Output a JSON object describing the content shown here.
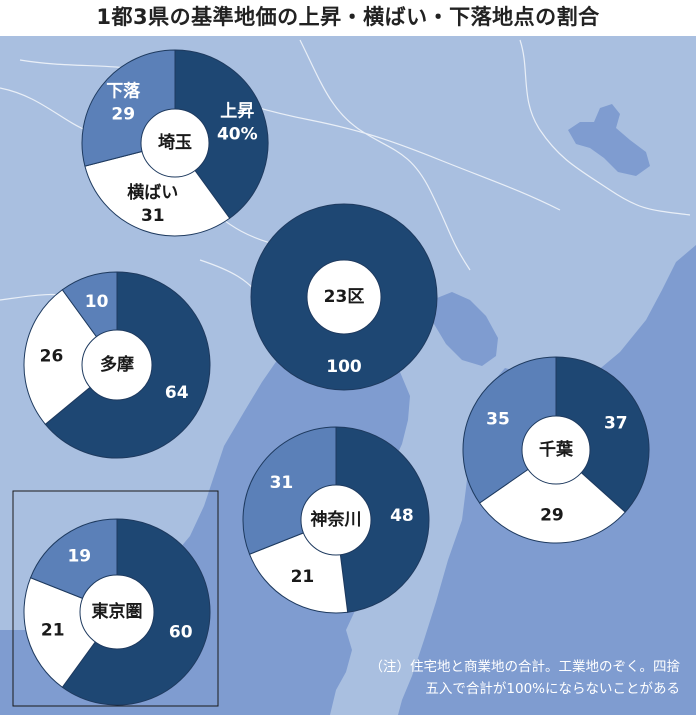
{
  "title": "1都3県の基準地価の上昇・横ばい・下落地点の割合",
  "colors": {
    "rise": "#1e4773",
    "flat": "#ffffff",
    "fall": "#5b80b8",
    "sea": "#7f9cd0",
    "land": "#a9bfe0",
    "text_dark": "#1a1a1a",
    "text_light": "#ffffff"
  },
  "note": {
    "line1": "（注）住宅地と商業地の合計。工業地のぞく。四捨",
    "line2": "五入で合計が100%にならないことがある"
  },
  "chart_data": {
    "type": "pie",
    "title": "1都3県の基準地価の上昇・横ばい・下落地点の割合",
    "unit": "%",
    "series_names": [
      "上昇",
      "横ばい",
      "下落"
    ],
    "charts": [
      {
        "name": "埼玉",
        "values": {
          "上昇": 40,
          "横ばい": 31,
          "下落": 29
        },
        "labels": {
          "上昇": [
            "上昇",
            "40%"
          ],
          "横ばい": [
            "横ばい",
            "31"
          ],
          "下落": [
            "下落",
            "29"
          ]
        }
      },
      {
        "name": "23区",
        "values": {
          "上昇": 100,
          "横ばい": 0,
          "下落": 0
        },
        "labels": {
          "上昇": [
            "100"
          ]
        }
      },
      {
        "name": "多摩",
        "values": {
          "上昇": 64,
          "横ばい": 26,
          "下落": 10
        },
        "labels": {
          "上昇": [
            "64"
          ],
          "横ばい": [
            "26"
          ],
          "下落": [
            "10"
          ]
        }
      },
      {
        "name": "千葉",
        "values": {
          "上昇": 37,
          "横ばい": 29,
          "下落": 35
        },
        "labels": {
          "上昇": [
            "37"
          ],
          "横ばい": [
            "29"
          ],
          "下落": [
            "35"
          ]
        }
      },
      {
        "name": "神奈川",
        "values": {
          "上昇": 48,
          "横ばい": 21,
          "下落": 31
        },
        "labels": {
          "上昇": [
            "48"
          ],
          "横ばい": [
            "21"
          ],
          "下落": [
            "31"
          ]
        }
      },
      {
        "name": "東京圏",
        "values": {
          "上昇": 60,
          "横ばい": 21,
          "下落": 19
        },
        "labels": {
          "上昇": [
            "60"
          ],
          "横ばい": [
            "21"
          ],
          "下落": [
            "19"
          ]
        }
      }
    ]
  }
}
